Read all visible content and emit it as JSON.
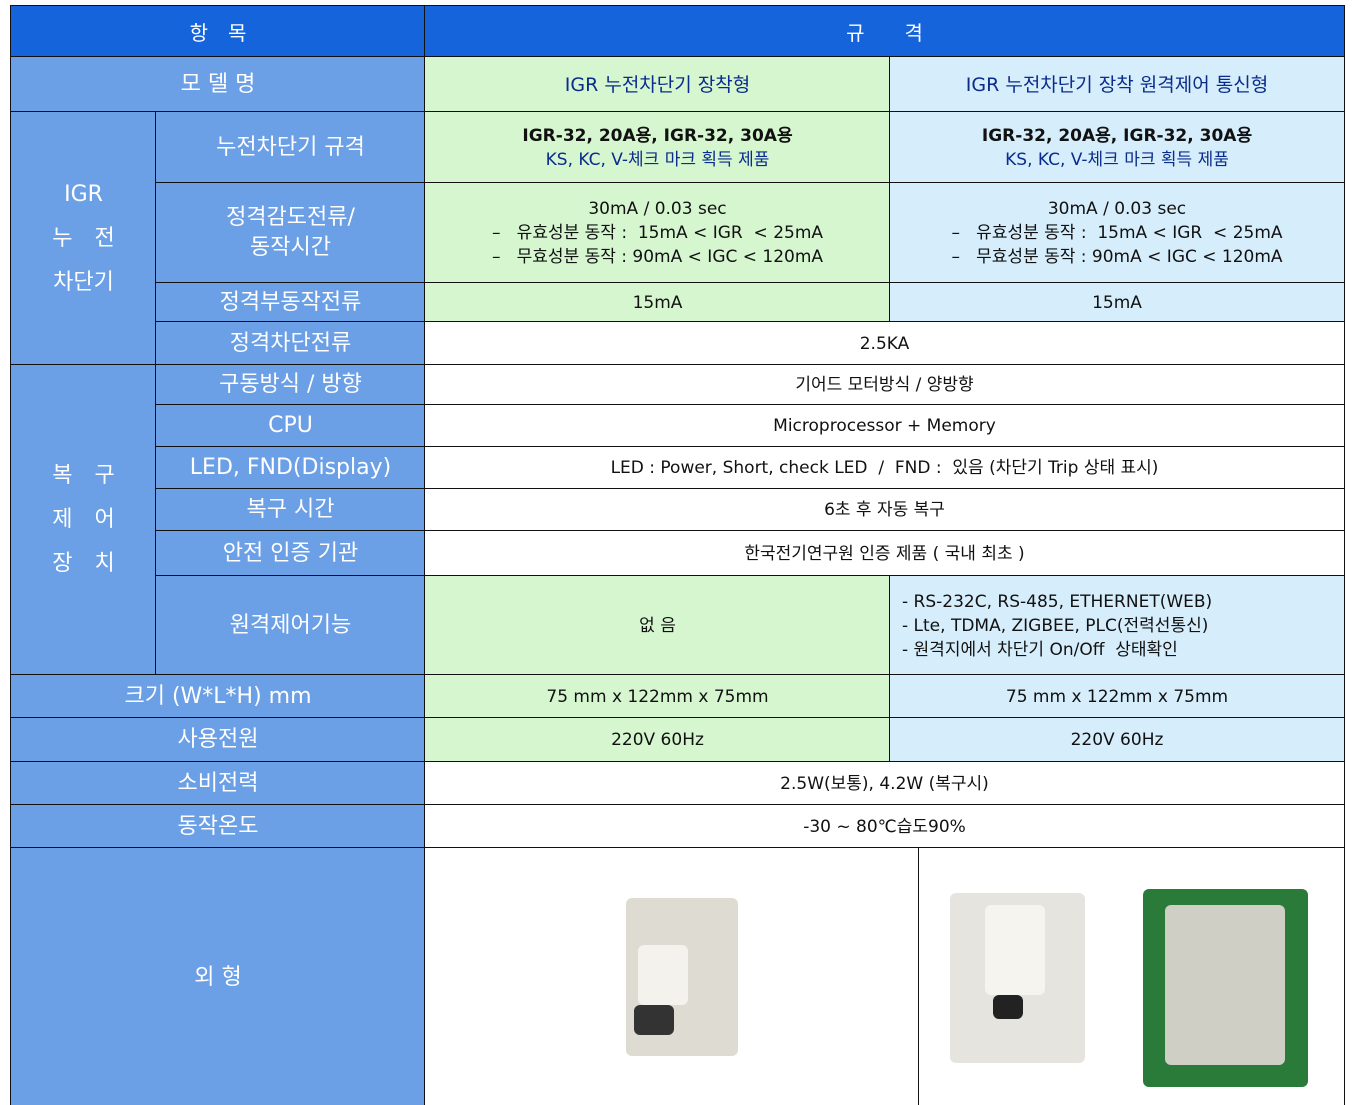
{
  "header": {
    "item": "항　목",
    "spec": "규　　격"
  },
  "model": {
    "label": "모 델 명",
    "col1": "IGR 누전차단기 장착형",
    "col2": "IGR 누전차단기 장착 원격제어 통신형"
  },
  "groups": [
    {
      "label": [
        "IGR",
        "누　전",
        "차단기"
      ]
    },
    {
      "label": [
        "복　구",
        "제　어",
        "장　치"
      ]
    }
  ],
  "rows": [
    {
      "label": [
        "누전차단기 규격"
      ],
      "col1": [
        "IGR-32, 20A용, IGR-32, 30A용",
        "KS, KC, V-체크 마크 획득 제품"
      ],
      "col2": [
        "IGR-32, 20A용, IGR-32, 30A용",
        "KS, KC, V-체크 마크 획득 제품"
      ]
    },
    {
      "label": [
        "정격감도전류/",
        "동작시간"
      ],
      "col1": [
        "30mA / 0.03 sec",
        "–   유효성분 동작 :  15mA < IGR  < 25mA",
        "–   무효성분 동작 : 90mA < IGC < 120mA"
      ],
      "col2": [
        "30mA / 0.03 sec",
        "–   유효성분 동작 :  15mA < IGR  < 25mA",
        "–   무효성분 동작 : 90mA < IGC < 120mA"
      ]
    },
    {
      "label": [
        "정격부동작전류"
      ],
      "col1": [
        "15mA"
      ],
      "col2": [
        "15mA"
      ]
    },
    {
      "label": [
        "정격차단전류"
      ],
      "span": [
        "2.5KA"
      ]
    },
    {
      "label": [
        "구동방식 / 방향"
      ],
      "span": [
        "기어드 모터방식 / 양방향"
      ]
    },
    {
      "label": [
        "CPU"
      ],
      "span": [
        "Microprocessor + Memory"
      ]
    },
    {
      "label": [
        "LED, FND(Display)"
      ],
      "span": [
        "LED : Power, Short, check LED  /  FND :  있음 (차단기 Trip 상태 표시)"
      ]
    },
    {
      "label": [
        "복구 시간"
      ],
      "span": [
        "6초 후 자동 복구"
      ]
    },
    {
      "label": [
        "안전 인증 기관"
      ],
      "span": [
        "한국전기연구원 인증 제품 ( 국내 최초 )"
      ]
    },
    {
      "label": [
        "원격제어기능"
      ],
      "col1": [
        "없 음"
      ],
      "col2": [
        "- RS-232C, RS-485, ETHERNET(WEB)",
        "- Lte, TDMA, ZIGBEE, PLC(전력선통신)",
        "- 원격지에서 차단기 On/Off  상태확인"
      ]
    },
    {
      "label": [
        "크기 (W*L*H) mm"
      ],
      "col1": [
        "75 mm x 122mm x 75mm"
      ],
      "col2": [
        "75 mm x 122mm x 75mm"
      ]
    },
    {
      "label": [
        "사용전원"
      ],
      "col1": [
        "220V 60Hz"
      ],
      "col2": [
        "220V 60Hz"
      ]
    },
    {
      "label": [
        "소비전력"
      ],
      "span": [
        "2.5W(보통), 4.2W (복구시)"
      ]
    },
    {
      "label": [
        "동작온도"
      ],
      "span": [
        "-30 ~ 80℃습도90%"
      ]
    },
    {
      "label": [
        "외 형"
      ],
      "images": true
    }
  ]
}
